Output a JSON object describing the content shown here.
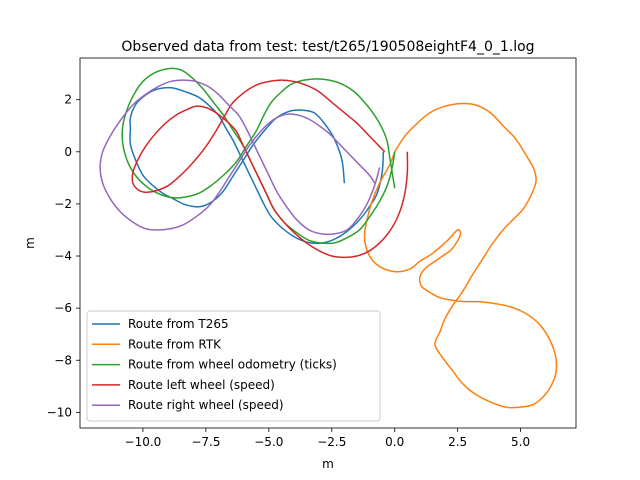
{
  "chart_data": {
    "type": "line",
    "title": "Observed data from test: test/t265/190508eightF4_0_1.log",
    "xlabel": "m",
    "ylabel": "m",
    "xlim": [
      -12.5,
      7.2
    ],
    "ylim": [
      -10.6,
      3.6
    ],
    "xticks": [
      -10.0,
      -7.5,
      -5.0,
      -2.5,
      0.0,
      2.5,
      5.0
    ],
    "xtick_labels": [
      "−10.0",
      "−7.5",
      "−5.0",
      "−2.5",
      "0.0",
      "2.5",
      "5.0"
    ],
    "yticks": [
      2,
      0,
      -2,
      -4,
      -6,
      -8,
      -10
    ],
    "ytick_labels": [
      "2",
      "0",
      "−2",
      "−4",
      "−6",
      "−8",
      "−10"
    ],
    "grid": false,
    "legend_position": "lower-left",
    "series": [
      {
        "name": "Route from T265",
        "color": "#1f77b4",
        "x": [
          -2.0,
          -2.1,
          -2.4,
          -2.8,
          -3.2,
          -3.7,
          -4.2,
          -4.7,
          -5.1,
          -5.6,
          -6.0,
          -6.4,
          -6.8,
          -7.1,
          -7.4,
          -7.7,
          -8.0,
          -8.4,
          -8.8,
          -9.2,
          -9.6,
          -10.0,
          -10.3,
          -10.5,
          -10.5,
          -10.5,
          -10.3,
          -10.0,
          -9.6,
          -9.2,
          -8.8,
          -8.3,
          -7.8,
          -7.4,
          -7.0,
          -6.7,
          -6.4,
          -6.1,
          -5.8,
          -5.5,
          -5.2,
          -4.9,
          -4.5,
          -4.1,
          -3.7,
          -3.3,
          -2.9,
          -2.5,
          -2.1,
          -1.7,
          -1.3,
          -1.0,
          -0.7,
          -0.5,
          -0.45
        ],
        "y": [
          -1.2,
          -0.3,
          0.5,
          1.1,
          1.5,
          1.6,
          1.55,
          1.3,
          0.9,
          0.3,
          -0.3,
          -0.9,
          -1.5,
          -1.8,
          -2.0,
          -2.1,
          -2.1,
          -2.0,
          -1.8,
          -1.6,
          -1.3,
          -0.9,
          -0.3,
          0.3,
          0.9,
          1.3,
          1.8,
          2.1,
          2.35,
          2.45,
          2.45,
          2.3,
          2.1,
          1.8,
          1.4,
          0.9,
          0.4,
          -0.2,
          -0.8,
          -1.4,
          -2.0,
          -2.5,
          -2.9,
          -3.2,
          -3.4,
          -3.5,
          -3.5,
          -3.4,
          -3.2,
          -2.9,
          -2.5,
          -2.1,
          -1.6,
          -0.8,
          0.0
        ]
      },
      {
        "name": "Route from RTK",
        "color": "#ff7f0e",
        "x": [
          0.0,
          0.4,
          0.9,
          1.4,
          2.0,
          2.6,
          3.2,
          3.8,
          4.3,
          4.8,
          5.2,
          5.5,
          5.6,
          5.6,
          5.4,
          5.1,
          4.7,
          4.3,
          3.9,
          3.5,
          3.1,
          2.8,
          2.6,
          2.3,
          2.0,
          1.8,
          1.6,
          1.9,
          2.3,
          2.7,
          3.2,
          3.8,
          4.4,
          5.0,
          5.5,
          5.9,
          6.2,
          6.4,
          6.4,
          6.2,
          5.9,
          5.5,
          5.0,
          4.4,
          3.8,
          3.3,
          2.8,
          2.3,
          1.8,
          1.4,
          1.1,
          1.0,
          1.0,
          1.1,
          1.3,
          1.6,
          1.9,
          2.3,
          2.6,
          2.5,
          2.1,
          1.5,
          1.0,
          0.6,
          0.0,
          -0.6,
          -1.0,
          -1.2,
          -1.1,
          -0.9,
          -0.6,
          -0.2,
          0.0
        ],
        "y": [
          0.0,
          0.6,
          1.1,
          1.5,
          1.75,
          1.85,
          1.8,
          1.5,
          1.0,
          0.5,
          -0.1,
          -0.6,
          -0.9,
          -1.2,
          -1.7,
          -2.2,
          -2.6,
          -3.0,
          -3.5,
          -4.1,
          -4.7,
          -5.2,
          -5.5,
          -5.9,
          -6.4,
          -6.9,
          -7.4,
          -7.9,
          -8.4,
          -8.9,
          -9.3,
          -9.6,
          -9.8,
          -9.8,
          -9.7,
          -9.4,
          -9.0,
          -8.5,
          -7.9,
          -7.3,
          -6.8,
          -6.4,
          -6.1,
          -5.9,
          -5.8,
          -5.75,
          -5.75,
          -5.7,
          -5.6,
          -5.4,
          -5.2,
          -5.0,
          -4.8,
          -4.6,
          -4.4,
          -4.2,
          -4.0,
          -3.7,
          -3.2,
          -3.0,
          -3.4,
          -3.9,
          -4.2,
          -4.5,
          -4.6,
          -4.4,
          -4.0,
          -3.3,
          -2.6,
          -1.9,
          -1.2,
          -0.5,
          0.0
        ]
      },
      {
        "name": "Route from wheel odometry (ticks)",
        "color": "#2ca02c",
        "x": [
          0.0,
          -0.1,
          -0.3,
          -0.6,
          -1.0,
          -1.4,
          -1.9,
          -2.4,
          -2.9,
          -3.4,
          -3.9,
          -4.4,
          -4.8,
          -5.1,
          -5.4,
          -5.7,
          -6.0,
          -6.4,
          -6.8,
          -7.2,
          -7.6,
          -8.0,
          -8.4,
          -8.8,
          -9.2,
          -9.6,
          -10.0,
          -10.3,
          -10.6,
          -10.8,
          -10.8,
          -10.6,
          -10.3,
          -9.9,
          -9.4,
          -8.9,
          -8.4,
          -7.8,
          -7.3,
          -6.8,
          -6.3,
          -5.9,
          -5.5,
          -5.2,
          -4.9,
          -4.5,
          -4.1,
          -3.6,
          -3.1,
          -2.6,
          -2.1,
          -1.6,
          -1.2,
          -0.8,
          -0.5,
          -0.3,
          -0.2,
          -0.1,
          0.0
        ],
        "y": [
          0.0,
          -0.6,
          -1.3,
          -1.9,
          -2.5,
          -3.0,
          -3.3,
          -3.5,
          -3.5,
          -3.4,
          -3.1,
          -2.7,
          -2.2,
          -1.6,
          -1.0,
          -0.4,
          0.2,
          0.8,
          1.4,
          1.9,
          2.4,
          2.8,
          3.1,
          3.2,
          3.15,
          3.0,
          2.7,
          2.3,
          1.7,
          1.0,
          0.3,
          -0.4,
          -0.9,
          -1.3,
          -1.6,
          -1.75,
          -1.75,
          -1.6,
          -1.3,
          -0.9,
          -0.4,
          0.2,
          0.8,
          1.4,
          1.9,
          2.3,
          2.6,
          2.75,
          2.8,
          2.75,
          2.6,
          2.3,
          1.9,
          1.4,
          0.9,
          0.4,
          -0.2,
          -0.8,
          -1.4
        ]
      },
      {
        "name": "Route left wheel (speed)",
        "color": "#d62728",
        "x": [
          0.5,
          0.5,
          0.4,
          0.2,
          -0.1,
          -0.5,
          -1.0,
          -1.5,
          -2.0,
          -2.5,
          -3.0,
          -3.5,
          -4.0,
          -4.4,
          -4.8,
          -5.1,
          -5.4,
          -5.7,
          -6.0,
          -6.3,
          -6.7,
          -7.1,
          -7.5,
          -7.9,
          -8.3,
          -8.7,
          -9.1,
          -9.5,
          -9.9,
          -10.2,
          -10.4,
          -10.4,
          -10.2,
          -9.9,
          -9.5,
          -9.0,
          -8.5,
          -8.0,
          -7.5,
          -7.1,
          -6.8,
          -6.5,
          -6.2,
          -5.8,
          -5.4,
          -5.0,
          -4.5,
          -4.0,
          -3.5,
          -3.0,
          -2.5,
          -2.0,
          -1.5,
          -1.1,
          -0.7,
          -0.4
        ],
        "y": [
          0.0,
          -0.8,
          -1.6,
          -2.3,
          -2.9,
          -3.4,
          -3.8,
          -4.0,
          -4.05,
          -4.0,
          -3.8,
          -3.5,
          -3.1,
          -2.7,
          -2.2,
          -1.6,
          -1.0,
          -0.4,
          0.2,
          0.8,
          1.2,
          1.5,
          1.7,
          1.75,
          1.6,
          1.4,
          1.1,
          0.7,
          0.2,
          -0.3,
          -0.8,
          -1.2,
          -1.45,
          -1.55,
          -1.5,
          -1.3,
          -0.9,
          -0.4,
          0.2,
          0.8,
          1.3,
          1.8,
          2.1,
          2.4,
          2.6,
          2.7,
          2.75,
          2.7,
          2.55,
          2.3,
          1.9,
          1.5,
          1.1,
          0.7,
          0.3,
          0.0
        ]
      },
      {
        "name": "Route right wheel (speed)",
        "color": "#9467bd",
        "x": [
          -0.6,
          -0.8,
          -1.1,
          -1.5,
          -1.9,
          -2.4,
          -2.9,
          -3.4,
          -3.9,
          -4.3,
          -4.7,
          -5.0,
          -5.3,
          -5.6,
          -5.9,
          -6.2,
          -6.6,
          -7.0,
          -7.4,
          -7.9,
          -8.4,
          -8.9,
          -9.4,
          -9.9,
          -10.4,
          -10.9,
          -11.3,
          -11.6,
          -11.7,
          -11.6,
          -11.3,
          -10.9,
          -10.4,
          -9.9,
          -9.4,
          -8.9,
          -8.4,
          -7.9,
          -7.4,
          -7.0,
          -6.6,
          -6.2,
          -5.8,
          -5.4,
          -5.0,
          -4.6,
          -4.2,
          -3.8,
          -3.4,
          -3.0,
          -2.6,
          -2.2,
          -1.8,
          -1.4,
          -1.0,
          -0.8
        ],
        "y": [
          -0.6,
          -1.3,
          -2.0,
          -2.6,
          -3.0,
          -3.15,
          -3.15,
          -3.0,
          -2.6,
          -2.1,
          -1.5,
          -0.9,
          -0.3,
          0.3,
          0.9,
          1.4,
          1.8,
          2.2,
          2.5,
          2.7,
          2.75,
          2.7,
          2.5,
          2.2,
          1.8,
          1.2,
          0.6,
          0.0,
          -0.6,
          -1.2,
          -1.8,
          -2.3,
          -2.7,
          -2.95,
          -3.0,
          -2.95,
          -2.8,
          -2.5,
          -2.1,
          -1.6,
          -1.0,
          -0.4,
          0.2,
          0.7,
          1.1,
          1.35,
          1.45,
          1.4,
          1.25,
          1.0,
          0.7,
          0.3,
          -0.1,
          -0.5,
          -0.9,
          -1.2
        ]
      }
    ]
  }
}
